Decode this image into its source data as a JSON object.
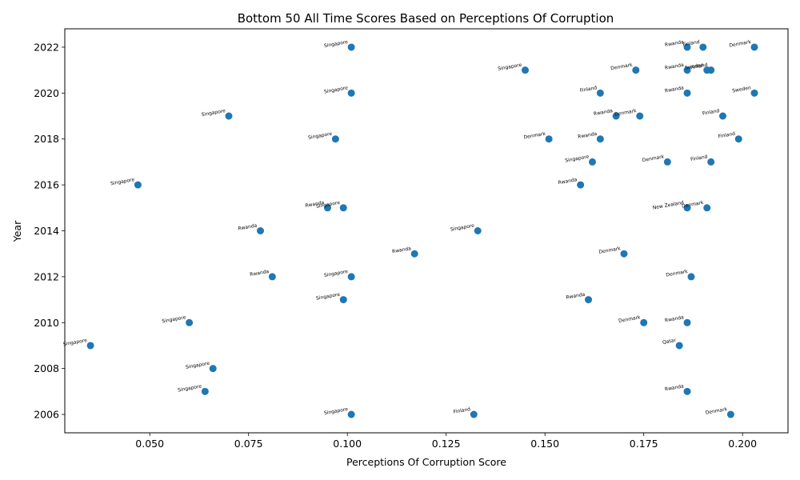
{
  "chart_data": {
    "type": "scatter",
    "title": "Bottom 50 All Time Scores Based on Perceptions Of Corruption",
    "xlabel": "Perceptions Of Corruption Score",
    "ylabel": "Year",
    "xlim": [
      0.0285,
      0.2115
    ],
    "ylim": [
      2005.2,
      2022.8
    ],
    "xticks": [
      0.05,
      0.075,
      0.1,
      0.125,
      0.15,
      0.175,
      0.2
    ],
    "xtick_labels": [
      "0.050",
      "0.075",
      "0.100",
      "0.125",
      "0.150",
      "0.175",
      "0.200"
    ],
    "yticks": [
      2006,
      2008,
      2010,
      2012,
      2014,
      2016,
      2018,
      2020,
      2022
    ],
    "ytick_labels": [
      "2006",
      "2008",
      "2010",
      "2012",
      "2014",
      "2016",
      "2018",
      "2020",
      "2022"
    ],
    "marker_color": "#1f77b4",
    "grid": false,
    "points": [
      {
        "label": "Singapore",
        "x": 0.101,
        "y": 2022
      },
      {
        "label": "Rwanda",
        "x": 0.186,
        "y": 2022
      },
      {
        "label": "Finland",
        "x": 0.19,
        "y": 2022
      },
      {
        "label": "Denmark",
        "x": 0.203,
        "y": 2022
      },
      {
        "label": "Singapore",
        "x": 0.145,
        "y": 2021
      },
      {
        "label": "Denmark",
        "x": 0.173,
        "y": 2021
      },
      {
        "label": "Rwanda",
        "x": 0.186,
        "y": 2021
      },
      {
        "label": "Sweden",
        "x": 0.191,
        "y": 2021
      },
      {
        "label": "Finland",
        "x": 0.192,
        "y": 2021
      },
      {
        "label": "Singapore",
        "x": 0.101,
        "y": 2020
      },
      {
        "label": "Finland",
        "x": 0.164,
        "y": 2020
      },
      {
        "label": "Rwanda",
        "x": 0.186,
        "y": 2020
      },
      {
        "label": "Sweden",
        "x": 0.203,
        "y": 2020
      },
      {
        "label": "Singapore",
        "x": 0.07,
        "y": 2019
      },
      {
        "label": "Rwanda",
        "x": 0.168,
        "y": 2019
      },
      {
        "label": "Denmark",
        "x": 0.174,
        "y": 2019
      },
      {
        "label": "Finland",
        "x": 0.195,
        "y": 2019
      },
      {
        "label": "Singapore",
        "x": 0.097,
        "y": 2018
      },
      {
        "label": "Denmark",
        "x": 0.151,
        "y": 2018
      },
      {
        "label": "Rwanda",
        "x": 0.164,
        "y": 2018
      },
      {
        "label": "Finland",
        "x": 0.199,
        "y": 2018
      },
      {
        "label": "Singapore",
        "x": 0.162,
        "y": 2017
      },
      {
        "label": "Denmark",
        "x": 0.181,
        "y": 2017
      },
      {
        "label": "Finland",
        "x": 0.192,
        "y": 2017
      },
      {
        "label": "Singapore",
        "x": 0.047,
        "y": 2016
      },
      {
        "label": "Rwanda",
        "x": 0.159,
        "y": 2016
      },
      {
        "label": "Rwanda",
        "x": 0.095,
        "y": 2015
      },
      {
        "label": "Singapore",
        "x": 0.099,
        "y": 2015
      },
      {
        "label": "New Zealand",
        "x": 0.186,
        "y": 2015
      },
      {
        "label": "Denmark",
        "x": 0.191,
        "y": 2015
      },
      {
        "label": "Rwanda",
        "x": 0.078,
        "y": 2014
      },
      {
        "label": "Singapore",
        "x": 0.133,
        "y": 2014
      },
      {
        "label": "Rwanda",
        "x": 0.117,
        "y": 2013
      },
      {
        "label": "Denmark",
        "x": 0.17,
        "y": 2013
      },
      {
        "label": "Rwanda",
        "x": 0.081,
        "y": 2012
      },
      {
        "label": "Singapore",
        "x": 0.101,
        "y": 2012
      },
      {
        "label": "Denmark",
        "x": 0.187,
        "y": 2012
      },
      {
        "label": "Singapore",
        "x": 0.099,
        "y": 2011
      },
      {
        "label": "Rwanda",
        "x": 0.161,
        "y": 2011
      },
      {
        "label": "Singapore",
        "x": 0.06,
        "y": 2010
      },
      {
        "label": "Denmark",
        "x": 0.175,
        "y": 2010
      },
      {
        "label": "Rwanda",
        "x": 0.186,
        "y": 2010
      },
      {
        "label": "Singapore",
        "x": 0.035,
        "y": 2009
      },
      {
        "label": "Qatar",
        "x": 0.184,
        "y": 2009
      },
      {
        "label": "Singapore",
        "x": 0.066,
        "y": 2008
      },
      {
        "label": "Singapore",
        "x": 0.064,
        "y": 2007
      },
      {
        "label": "Rwanda",
        "x": 0.186,
        "y": 2007
      },
      {
        "label": "Singapore",
        "x": 0.101,
        "y": 2006
      },
      {
        "label": "Finland",
        "x": 0.132,
        "y": 2006
      },
      {
        "label": "Denmark",
        "x": 0.197,
        "y": 2006
      }
    ]
  }
}
